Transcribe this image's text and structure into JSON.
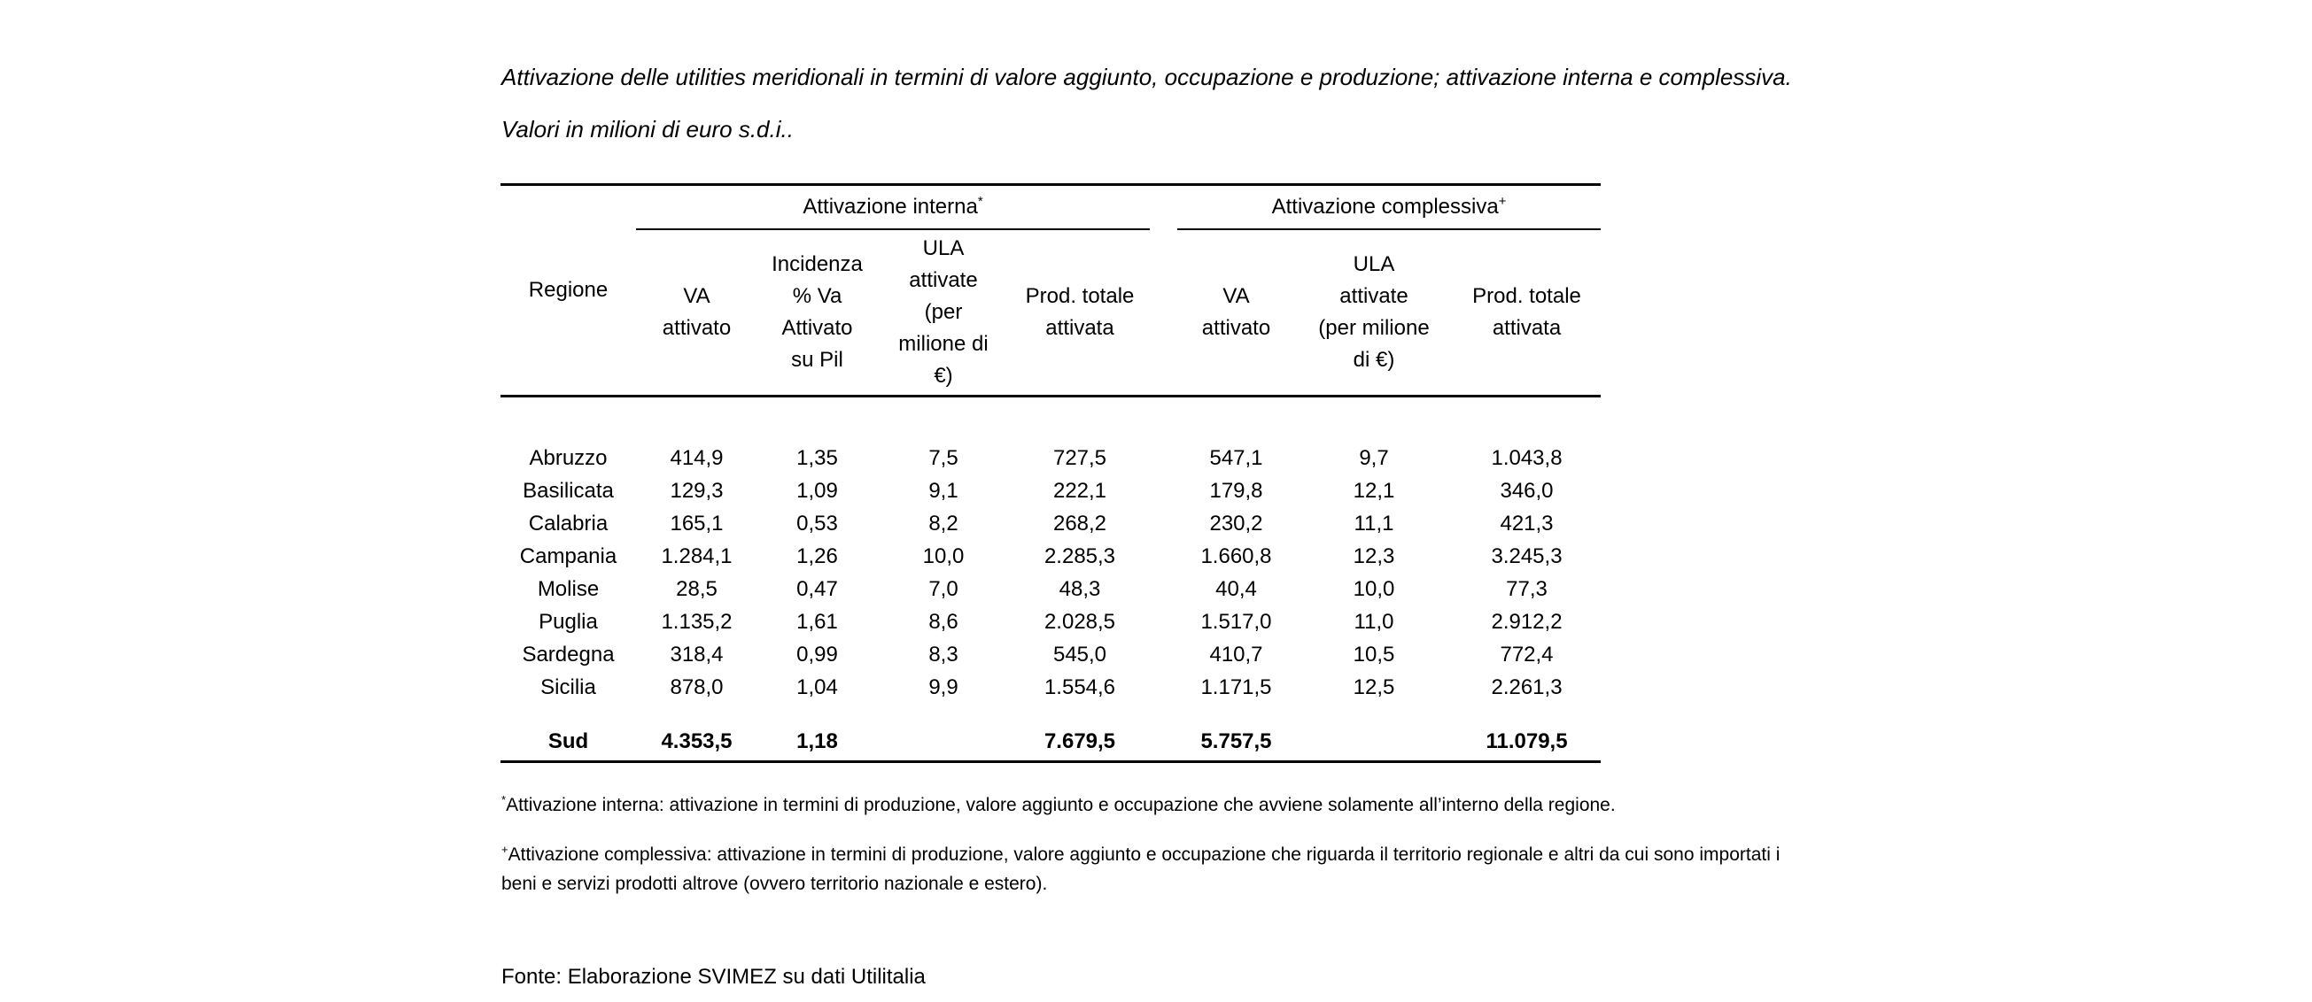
{
  "page": {
    "background": "#ffffff",
    "text_color": "#000000"
  },
  "title": {
    "line1": "Attivazione delle utilities meridionali in termini di valore aggiunto, occupazione e produzione; attivazione interna e complessiva.",
    "line2": "Valori in milioni di euro s.d.i.."
  },
  "table": {
    "corner_label": "Regione",
    "groups": [
      {
        "label": "Attivazione interna",
        "marker": "*"
      },
      {
        "label": "Attivazione complessiva",
        "marker": "+"
      }
    ],
    "headers_interna": {
      "va": [
        "VA",
        "attivato"
      ],
      "incidenza": [
        "Incidenza",
        "% Va",
        "Attivato",
        "su Pil"
      ],
      "ula": [
        "ULA",
        "attivate",
        "(per",
        "milione di",
        "€)"
      ],
      "prod": [
        "Prod. totale",
        "attivata"
      ]
    },
    "headers_complessiva": {
      "va": [
        "VA",
        "attivato"
      ],
      "ula": [
        "ULA",
        "attivate",
        "(per milione",
        "di €)"
      ],
      "prod": [
        "Prod. totale",
        "attivata"
      ]
    },
    "rows": [
      {
        "region": "Abruzzo",
        "values": [
          "414,9",
          "1,35",
          "7,5",
          "727,5",
          "547,1",
          "9,7",
          "1.043,8"
        ]
      },
      {
        "region": "Basilicata",
        "values": [
          "129,3",
          "1,09",
          "9,1",
          "222,1",
          "179,8",
          "12,1",
          "346,0"
        ]
      },
      {
        "region": "Calabria",
        "values": [
          "165,1",
          "0,53",
          "8,2",
          "268,2",
          "230,2",
          "11,1",
          "421,3"
        ]
      },
      {
        "region": "Campania",
        "values": [
          "1.284,1",
          "1,26",
          "10,0",
          "2.285,3",
          "1.660,8",
          "12,3",
          "3.245,3"
        ]
      },
      {
        "region": "Molise",
        "values": [
          "28,5",
          "0,47",
          "7,0",
          "48,3",
          "40,4",
          "10,0",
          "77,3"
        ]
      },
      {
        "region": "Puglia",
        "values": [
          "1.135,2",
          "1,61",
          "8,6",
          "2.028,5",
          "1.517,0",
          "11,0",
          "2.912,2"
        ]
      },
      {
        "region": "Sardegna",
        "values": [
          "318,4",
          "0,99",
          "8,3",
          "545,0",
          "410,7",
          "10,5",
          "772,4"
        ]
      },
      {
        "region": "Sicilia",
        "values": [
          "878,0",
          "1,04",
          "9,9",
          "1.554,6",
          "1.171,5",
          "12,5",
          "2.261,3"
        ]
      }
    ],
    "total_row": {
      "region": "Sud",
      "values": [
        "4.353,5",
        "1,18",
        "",
        "7.679,5",
        "5.757,5",
        "",
        "11.079,5"
      ]
    }
  },
  "footnotes": {
    "fn1": {
      "marker": "*",
      "text": "Attivazione interna: attivazione in termini di produzione, valore aggiunto e occupazione che avviene solamente all’interno della regione."
    },
    "fn2": {
      "marker": "+",
      "line1": "Attivazione complessiva: attivazione in termini di produzione, valore aggiunto e occupazione che riguarda il territorio regionale e altri da cui sono importati i",
      "line2": "beni e servizi prodotti altrove (ovvero territorio nazionale e estero)."
    }
  },
  "source": "Fonte: Elaborazione SVIMEZ su dati Utilitalia"
}
